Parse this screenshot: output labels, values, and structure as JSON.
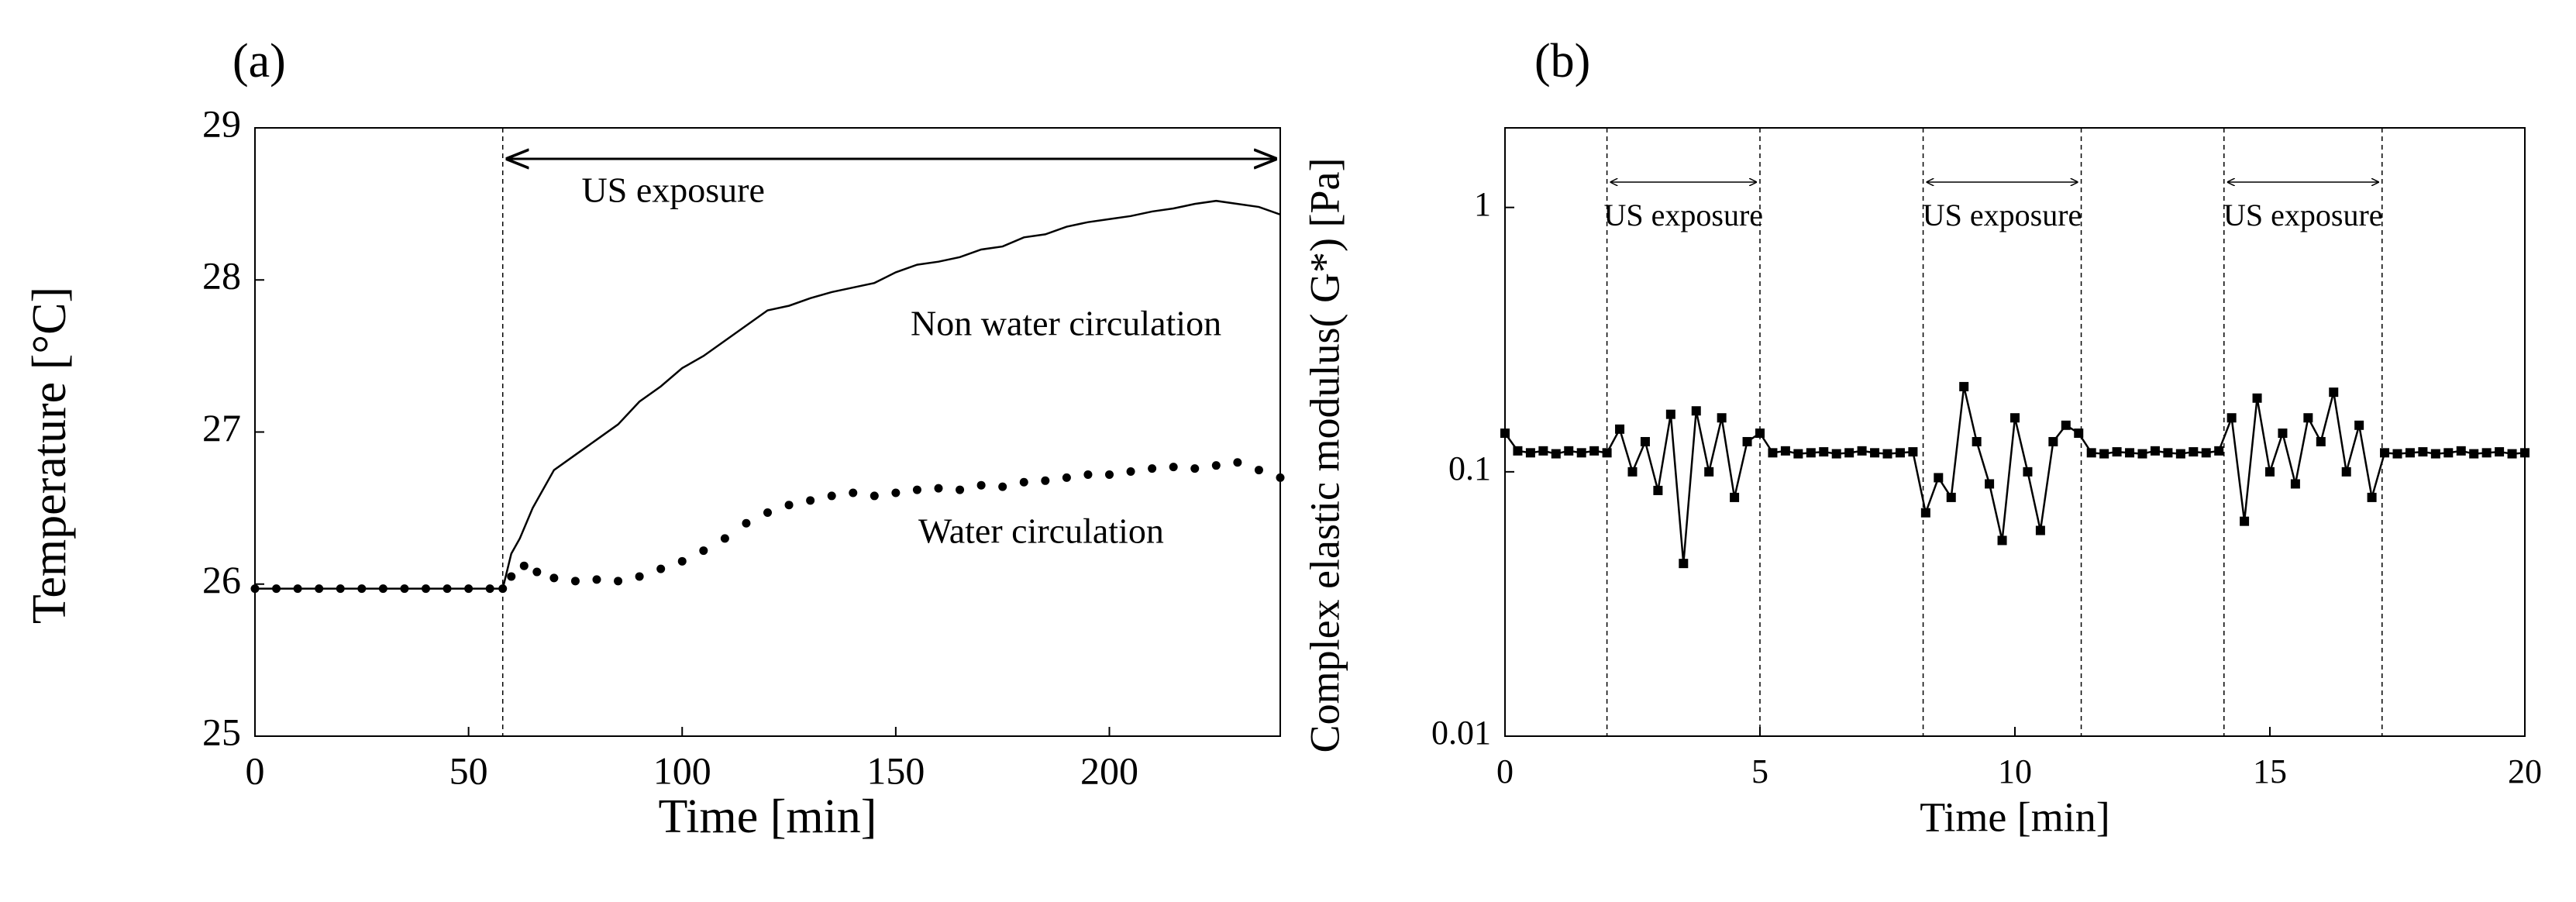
{
  "chart_data": [
    {
      "type": "line",
      "label": "(a)",
      "xlabel": "Time [min]",
      "ylabel": "Temperature [°C]",
      "xlim": [
        0,
        240
      ],
      "ylim": [
        25,
        29
      ],
      "xticks": [
        0,
        50,
        100,
        150,
        200
      ],
      "yticks": [
        25,
        26,
        27,
        28,
        29
      ],
      "vlines": [
        58
      ],
      "annotations": [
        {
          "text": "US exposure",
          "x": [
            58,
            240
          ]
        }
      ],
      "series": [
        {
          "name": "Non water circulation",
          "color": "#000000",
          "style": "solid",
          "x": [
            0,
            10,
            20,
            30,
            40,
            50,
            58,
            60,
            62,
            65,
            70,
            75,
            80,
            85,
            90,
            95,
            100,
            105,
            110,
            115,
            120,
            125,
            130,
            135,
            140,
            145,
            150,
            155,
            160,
            165,
            170,
            175,
            180,
            185,
            190,
            195,
            200,
            205,
            210,
            215,
            220,
            225,
            230,
            235,
            240
          ],
          "values": [
            25.97,
            25.97,
            25.97,
            25.97,
            25.97,
            25.97,
            25.97,
            26.2,
            26.3,
            26.5,
            26.75,
            26.85,
            26.95,
            27.05,
            27.2,
            27.3,
            27.42,
            27.5,
            27.6,
            27.7,
            27.8,
            27.83,
            27.88,
            27.92,
            27.95,
            27.98,
            28.05,
            28.1,
            28.12,
            28.15,
            28.2,
            28.22,
            28.28,
            28.3,
            28.35,
            28.38,
            28.4,
            28.42,
            28.45,
            28.47,
            28.5,
            28.52,
            28.5,
            28.48,
            28.43
          ]
        },
        {
          "name": "Water circulation",
          "color": "#000000",
          "style": "dotted",
          "x": [
            0,
            5,
            10,
            15,
            20,
            25,
            30,
            35,
            40,
            45,
            50,
            55,
            58,
            60,
            63,
            66,
            70,
            75,
            80,
            85,
            90,
            95,
            100,
            105,
            110,
            115,
            120,
            125,
            130,
            135,
            140,
            145,
            150,
            155,
            160,
            165,
            170,
            175,
            180,
            185,
            190,
            195,
            200,
            205,
            210,
            215,
            220,
            225,
            230,
            235,
            240
          ],
          "values": [
            25.97,
            25.97,
            25.97,
            25.97,
            25.97,
            25.97,
            25.97,
            25.97,
            25.97,
            25.97,
            25.97,
            25.97,
            25.97,
            26.05,
            26.12,
            26.08,
            26.04,
            26.02,
            26.03,
            26.02,
            26.05,
            26.1,
            26.15,
            26.22,
            26.3,
            26.4,
            26.47,
            26.52,
            26.55,
            26.58,
            26.6,
            26.58,
            26.6,
            26.62,
            26.63,
            26.62,
            26.65,
            26.64,
            26.67,
            26.68,
            26.7,
            26.72,
            26.72,
            26.74,
            26.76,
            26.77,
            26.76,
            26.78,
            26.8,
            26.75,
            26.7
          ]
        }
      ]
    },
    {
      "type": "line",
      "label": "(b)",
      "xlabel": "Time [min]",
      "ylabel": "Complex elastic modulus( G*) [Pa]",
      "log": true,
      "xlim": [
        0,
        20
      ],
      "ylim": [
        0.01,
        2
      ],
      "xticks": [
        0,
        5,
        10,
        15,
        20
      ],
      "yticks": [
        0.01,
        0.1,
        1
      ],
      "vlines": [
        2,
        5,
        8.2,
        11.3,
        14.1,
        17.2
      ],
      "annotations": [
        {
          "text": "US exposure",
          "x": [
            2,
            5
          ]
        },
        {
          "text": "US exposure",
          "x": [
            8.2,
            11.3
          ]
        },
        {
          "text": "US exposure",
          "x": [
            14.1,
            17.2
          ]
        }
      ],
      "series": [
        {
          "color": "#000000",
          "style": "marker",
          "x": [
            0,
            0.25,
            0.5,
            0.75,
            1,
            1.25,
            1.5,
            1.75,
            2,
            2.25,
            2.5,
            2.75,
            3,
            3.25,
            3.5,
            3.75,
            4,
            4.25,
            4.5,
            4.75,
            5,
            5.25,
            5.5,
            5.75,
            6,
            6.25,
            6.5,
            6.75,
            7,
            7.25,
            7.5,
            7.75,
            8,
            8.25,
            8.5,
            8.75,
            9,
            9.25,
            9.5,
            9.75,
            10,
            10.25,
            10.5,
            10.75,
            11,
            11.25,
            11.5,
            11.75,
            12,
            12.25,
            12.5,
            12.75,
            13,
            13.25,
            13.5,
            13.75,
            14,
            14.25,
            14.5,
            14.75,
            15,
            15.25,
            15.5,
            15.75,
            16,
            16.25,
            16.5,
            16.75,
            17,
            17.25,
            17.5,
            17.75,
            18,
            18.25,
            18.5,
            18.75,
            19,
            19.25,
            19.5,
            19.75,
            20
          ],
          "values": [
            0.14,
            0.12,
            0.118,
            0.12,
            0.117,
            0.12,
            0.118,
            0.12,
            0.118,
            0.145,
            0.1,
            0.13,
            0.085,
            0.165,
            0.045,
            0.17,
            0.1,
            0.16,
            0.08,
            0.13,
            0.14,
            0.118,
            0.12,
            0.117,
            0.118,
            0.119,
            0.117,
            0.118,
            0.12,
            0.118,
            0.117,
            0.118,
            0.119,
            0.07,
            0.095,
            0.08,
            0.21,
            0.13,
            0.09,
            0.055,
            0.16,
            0.1,
            0.06,
            0.13,
            0.15,
            0.14,
            0.118,
            0.117,
            0.119,
            0.118,
            0.117,
            0.12,
            0.118,
            0.117,
            0.119,
            0.118,
            0.12,
            0.16,
            0.065,
            0.19,
            0.1,
            0.14,
            0.09,
            0.16,
            0.13,
            0.2,
            0.1,
            0.15,
            0.08,
            0.118,
            0.117,
            0.118,
            0.119,
            0.117,
            0.118,
            0.12,
            0.117,
            0.118,
            0.119,
            0.117,
            0.118
          ]
        }
      ]
    }
  ]
}
